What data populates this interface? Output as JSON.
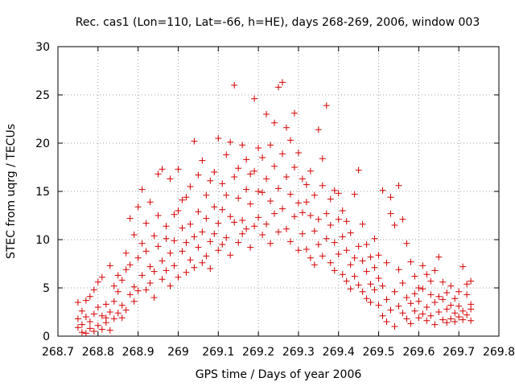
{
  "chart_data": {
    "type": "scatter",
    "title": "Rec. cas1 (Lon=110, Lat=-66, h=HE), days 268-269, 2006, window 003",
    "xlabel": "GPS time / Days of year 2006",
    "ylabel": "STEC from uqrg / TECUs",
    "xlim": [
      268.7,
      269.8
    ],
    "ylim": [
      0,
      30
    ],
    "xticks": [
      "268.7",
      "268.8",
      "268.9",
      "269",
      "269.1",
      "269.2",
      "269.3",
      "269.4",
      "269.5",
      "269.6",
      "269.7",
      "269.8"
    ],
    "yticks": [
      "0",
      "5",
      "10",
      "15",
      "20",
      "25",
      "30"
    ],
    "grid": true,
    "marker": "+",
    "color": "#d40000",
    "points": [
      [
        268.75,
        0.9
      ],
      [
        268.75,
        1.8
      ],
      [
        268.75,
        3.5
      ],
      [
        268.76,
        0.4
      ],
      [
        268.76,
        1.2
      ],
      [
        268.76,
        2.6
      ],
      [
        268.77,
        0.3
      ],
      [
        268.77,
        3.7
      ],
      [
        268.77,
        2.0
      ],
      [
        268.78,
        0.8
      ],
      [
        268.78,
        4.1
      ],
      [
        268.78,
        1.5
      ],
      [
        268.79,
        0.5
      ],
      [
        268.79,
        2.3
      ],
      [
        268.79,
        4.8
      ],
      [
        268.8,
        1.1
      ],
      [
        268.8,
        3.0
      ],
      [
        268.8,
        5.6
      ],
      [
        268.81,
        0.7
      ],
      [
        268.81,
        2.1
      ],
      [
        268.81,
        6.1
      ],
      [
        268.82,
        1.4
      ],
      [
        268.82,
        3.3
      ],
      [
        268.82,
        1.9
      ],
      [
        268.83,
        0.6
      ],
      [
        268.83,
        7.3
      ],
      [
        268.83,
        2.5
      ],
      [
        268.84,
        1.8
      ],
      [
        268.84,
        5.2
      ],
      [
        268.84,
        3.6
      ],
      [
        268.85,
        2.4
      ],
      [
        268.85,
        6.3
      ],
      [
        268.85,
        4.6
      ],
      [
        268.86,
        1.9
      ],
      [
        268.86,
        5.8
      ],
      [
        268.86,
        3.2
      ],
      [
        268.87,
        2.7
      ],
      [
        268.87,
        8.6
      ],
      [
        268.87,
        6.9
      ],
      [
        268.88,
        12.2
      ],
      [
        268.88,
        4.3
      ],
      [
        268.88,
        7.4
      ],
      [
        268.89,
        3.6
      ],
      [
        268.89,
        10.5
      ],
      [
        268.89,
        5.1
      ],
      [
        268.9,
        13.4
      ],
      [
        268.9,
        8.1
      ],
      [
        268.9,
        4.7
      ],
      [
        268.91,
        6.3
      ],
      [
        268.91,
        9.6
      ],
      [
        268.91,
        15.2
      ],
      [
        268.92,
        4.8
      ],
      [
        268.92,
        8.8
      ],
      [
        268.92,
        11.7
      ],
      [
        268.93,
        7.2
      ],
      [
        268.93,
        5.5
      ],
      [
        268.93,
        13.9
      ],
      [
        268.94,
        6.7
      ],
      [
        268.94,
        10.4
      ],
      [
        268.94,
        4.0
      ],
      [
        268.95,
        9.3
      ],
      [
        268.95,
        12.5
      ],
      [
        268.95,
        16.8
      ],
      [
        268.96,
        7.8
      ],
      [
        268.96,
        5.9
      ],
      [
        268.96,
        17.3
      ],
      [
        268.97,
        10.1
      ],
      [
        268.97,
        6.8
      ],
      [
        268.97,
        11.4
      ],
      [
        268.98,
        16.3
      ],
      [
        268.98,
        8.6
      ],
      [
        268.98,
        5.2
      ],
      [
        268.99,
        9.9
      ],
      [
        268.99,
        12.6
      ],
      [
        268.99,
        7.3
      ],
      [
        269.0,
        13.0
      ],
      [
        269.0,
        6.1
      ],
      [
        269.0,
        17.3
      ],
      [
        269.01,
        8.8
      ],
      [
        269.01,
        11.2
      ],
      [
        269.01,
        14.1
      ],
      [
        269.02,
        6.6
      ],
      [
        269.02,
        9.7
      ],
      [
        269.02,
        14.4
      ],
      [
        269.03,
        11.6
      ],
      [
        269.03,
        7.9
      ],
      [
        269.03,
        15.5
      ],
      [
        269.04,
        20.2
      ],
      [
        269.04,
        10.3
      ],
      [
        269.04,
        7.1
      ],
      [
        269.05,
        16.7
      ],
      [
        269.05,
        12.9
      ],
      [
        269.05,
        9.2
      ],
      [
        269.06,
        18.2
      ],
      [
        269.06,
        10.8
      ],
      [
        269.06,
        7.6
      ],
      [
        269.07,
        14.6
      ],
      [
        269.07,
        8.3
      ],
      [
        269.07,
        12.2
      ],
      [
        269.08,
        9.8
      ],
      [
        269.08,
        16.1
      ],
      [
        269.08,
        7.0
      ],
      [
        269.09,
        13.4
      ],
      [
        269.09,
        10.6
      ],
      [
        269.09,
        17.0
      ],
      [
        269.1,
        20.5
      ],
      [
        269.1,
        11.7
      ],
      [
        269.1,
        8.9
      ],
      [
        269.11,
        15.8
      ],
      [
        269.11,
        9.5
      ],
      [
        269.11,
        13.1
      ],
      [
        269.12,
        18.8
      ],
      [
        269.12,
        10.2
      ],
      [
        269.12,
        14.6
      ],
      [
        269.13,
        20.1
      ],
      [
        269.13,
        12.4
      ],
      [
        269.13,
        8.4
      ],
      [
        269.14,
        16.5
      ],
      [
        269.14,
        11.8
      ],
      [
        269.14,
        26.0
      ],
      [
        269.15,
        14.3
      ],
      [
        269.15,
        9.7
      ],
      [
        269.15,
        17.4
      ],
      [
        269.16,
        19.8
      ],
      [
        269.16,
        12.0
      ],
      [
        269.16,
        10.6
      ],
      [
        269.17,
        15.2
      ],
      [
        269.17,
        18.3
      ],
      [
        269.17,
        11.1
      ],
      [
        269.18,
        16.8
      ],
      [
        269.18,
        13.7
      ],
      [
        269.18,
        9.2
      ],
      [
        269.19,
        24.6
      ],
      [
        269.19,
        17.1
      ],
      [
        269.19,
        11.4
      ],
      [
        269.2,
        19.5
      ],
      [
        269.2,
        15.0
      ],
      [
        269.2,
        12.3
      ],
      [
        269.21,
        14.9
      ],
      [
        269.21,
        18.5
      ],
      [
        269.21,
        10.5
      ],
      [
        269.22,
        23.0
      ],
      [
        269.22,
        16.3
      ],
      [
        269.22,
        11.6
      ],
      [
        269.23,
        19.8
      ],
      [
        269.23,
        14.0
      ],
      [
        269.23,
        9.6
      ],
      [
        269.24,
        17.6
      ],
      [
        269.24,
        12.7
      ],
      [
        269.24,
        22.1
      ],
      [
        269.25,
        25.8
      ],
      [
        269.25,
        15.3
      ],
      [
        269.25,
        10.8
      ],
      [
        269.26,
        26.3
      ],
      [
        269.26,
        18.9
      ],
      [
        269.26,
        13.2
      ],
      [
        269.27,
        21.6
      ],
      [
        269.27,
        11.1
      ],
      [
        269.27,
        16.5
      ],
      [
        269.28,
        20.3
      ],
      [
        269.28,
        14.7
      ],
      [
        269.28,
        9.8
      ],
      [
        269.29,
        23.1
      ],
      [
        269.29,
        17.5
      ],
      [
        269.29,
        12.4
      ],
      [
        269.3,
        19.0
      ],
      [
        269.3,
        13.8
      ],
      [
        269.3,
        8.9
      ],
      [
        269.31,
        16.3
      ],
      [
        269.31,
        10.6
      ],
      [
        269.31,
        12.8
      ],
      [
        269.32,
        13.9
      ],
      [
        269.32,
        9.0
      ],
      [
        269.32,
        15.7
      ],
      [
        269.33,
        12.5
      ],
      [
        269.33,
        8.1
      ],
      [
        269.33,
        17.1
      ],
      [
        269.34,
        10.9
      ],
      [
        269.34,
        14.6
      ],
      [
        269.34,
        7.4
      ],
      [
        269.35,
        21.4
      ],
      [
        269.35,
        12.1
      ],
      [
        269.35,
        9.5
      ],
      [
        269.36,
        15.6
      ],
      [
        269.36,
        18.4
      ],
      [
        269.36,
        8.3
      ],
      [
        269.37,
        12.7
      ],
      [
        269.37,
        23.9
      ],
      [
        269.37,
        10.1
      ],
      [
        269.38,
        14.2
      ],
      [
        269.38,
        7.6
      ],
      [
        269.38,
        11.5
      ],
      [
        269.39,
        9.7
      ],
      [
        269.39,
        15.1
      ],
      [
        269.39,
        6.8
      ],
      [
        269.4,
        12.1
      ],
      [
        269.4,
        8.5
      ],
      [
        269.4,
        14.8
      ],
      [
        269.41,
        10.3
      ],
      [
        269.41,
        6.4
      ],
      [
        269.41,
        13.0
      ],
      [
        269.42,
        8.9
      ],
      [
        269.42,
        11.9
      ],
      [
        269.42,
        5.7
      ],
      [
        269.43,
        7.4
      ],
      [
        269.43,
        10.7
      ],
      [
        269.43,
        4.9
      ],
      [
        269.44,
        14.7
      ],
      [
        269.44,
        8.1
      ],
      [
        269.44,
        6.2
      ],
      [
        269.45,
        17.2
      ],
      [
        269.45,
        9.3
      ],
      [
        269.45,
        5.3
      ],
      [
        269.46,
        7.8
      ],
      [
        269.46,
        4.6
      ],
      [
        269.46,
        11.6
      ],
      [
        269.47,
        6.7
      ],
      [
        269.47,
        3.9
      ],
      [
        269.47,
        9.5
      ],
      [
        269.48,
        5.4
      ],
      [
        269.48,
        8.2
      ],
      [
        269.48,
        3.5
      ],
      [
        269.49,
        7.1
      ],
      [
        269.49,
        4.8
      ],
      [
        269.49,
        10.1
      ],
      [
        269.5,
        6.0
      ],
      [
        269.5,
        3.2
      ],
      [
        269.5,
        8.4
      ],
      [
        269.51,
        2.1
      ],
      [
        269.51,
        5.2
      ],
      [
        269.51,
        15.1
      ],
      [
        269.52,
        1.5
      ],
      [
        269.52,
        3.8
      ],
      [
        269.52,
        7.6
      ],
      [
        269.53,
        14.4
      ],
      [
        269.53,
        2.7
      ],
      [
        269.53,
        12.7
      ],
      [
        269.54,
        1.0
      ],
      [
        269.54,
        4.6
      ],
      [
        269.54,
        11.5
      ],
      [
        269.55,
        15.6
      ],
      [
        269.55,
        6.9
      ],
      [
        269.55,
        3.1
      ],
      [
        269.56,
        12.1
      ],
      [
        269.56,
        2.4
      ],
      [
        269.56,
        5.5
      ],
      [
        269.57,
        9.6
      ],
      [
        269.57,
        1.8
      ],
      [
        269.57,
        4.0
      ],
      [
        269.58,
        7.7
      ],
      [
        269.58,
        3.4
      ],
      [
        269.58,
        1.3
      ],
      [
        269.59,
        6.2
      ],
      [
        269.59,
        2.6
      ],
      [
        269.59,
        4.4
      ],
      [
        269.6,
        5.0
      ],
      [
        269.6,
        1.9
      ],
      [
        269.6,
        3.6
      ],
      [
        269.61,
        7.3
      ],
      [
        269.61,
        2.3
      ],
      [
        269.61,
        4.9
      ],
      [
        269.62,
        6.4
      ],
      [
        269.62,
        1.6
      ],
      [
        269.62,
        3.0
      ],
      [
        269.63,
        5.7
      ],
      [
        269.63,
        2.1
      ],
      [
        269.63,
        4.3
      ],
      [
        269.64,
        3.5
      ],
      [
        269.64,
        1.2
      ],
      [
        269.64,
        6.8
      ],
      [
        269.65,
        8.2
      ],
      [
        269.65,
        2.5
      ],
      [
        269.65,
        4.1
      ],
      [
        269.66,
        1.7
      ],
      [
        269.66,
        3.8
      ],
      [
        269.66,
        5.6
      ],
      [
        269.67,
        1.4
      ],
      [
        269.67,
        2.8
      ],
      [
        269.67,
        4.5
      ],
      [
        269.68,
        3.2
      ],
      [
        269.68,
        1.8
      ],
      [
        269.68,
        5.2
      ],
      [
        269.69,
        2.4
      ],
      [
        269.69,
        1.5
      ],
      [
        269.69,
        3.9
      ],
      [
        269.7,
        4.6
      ],
      [
        269.7,
        2.0
      ],
      [
        269.7,
        3.1
      ],
      [
        269.71,
        7.2
      ],
      [
        269.71,
        2.6
      ],
      [
        269.71,
        1.7
      ],
      [
        269.72,
        4.3
      ],
      [
        269.72,
        2.2
      ],
      [
        269.72,
        5.4
      ],
      [
        269.73,
        3.3
      ],
      [
        269.73,
        1.6
      ],
      [
        269.73,
        5.7
      ],
      [
        269.73,
        2.8
      ]
    ]
  }
}
